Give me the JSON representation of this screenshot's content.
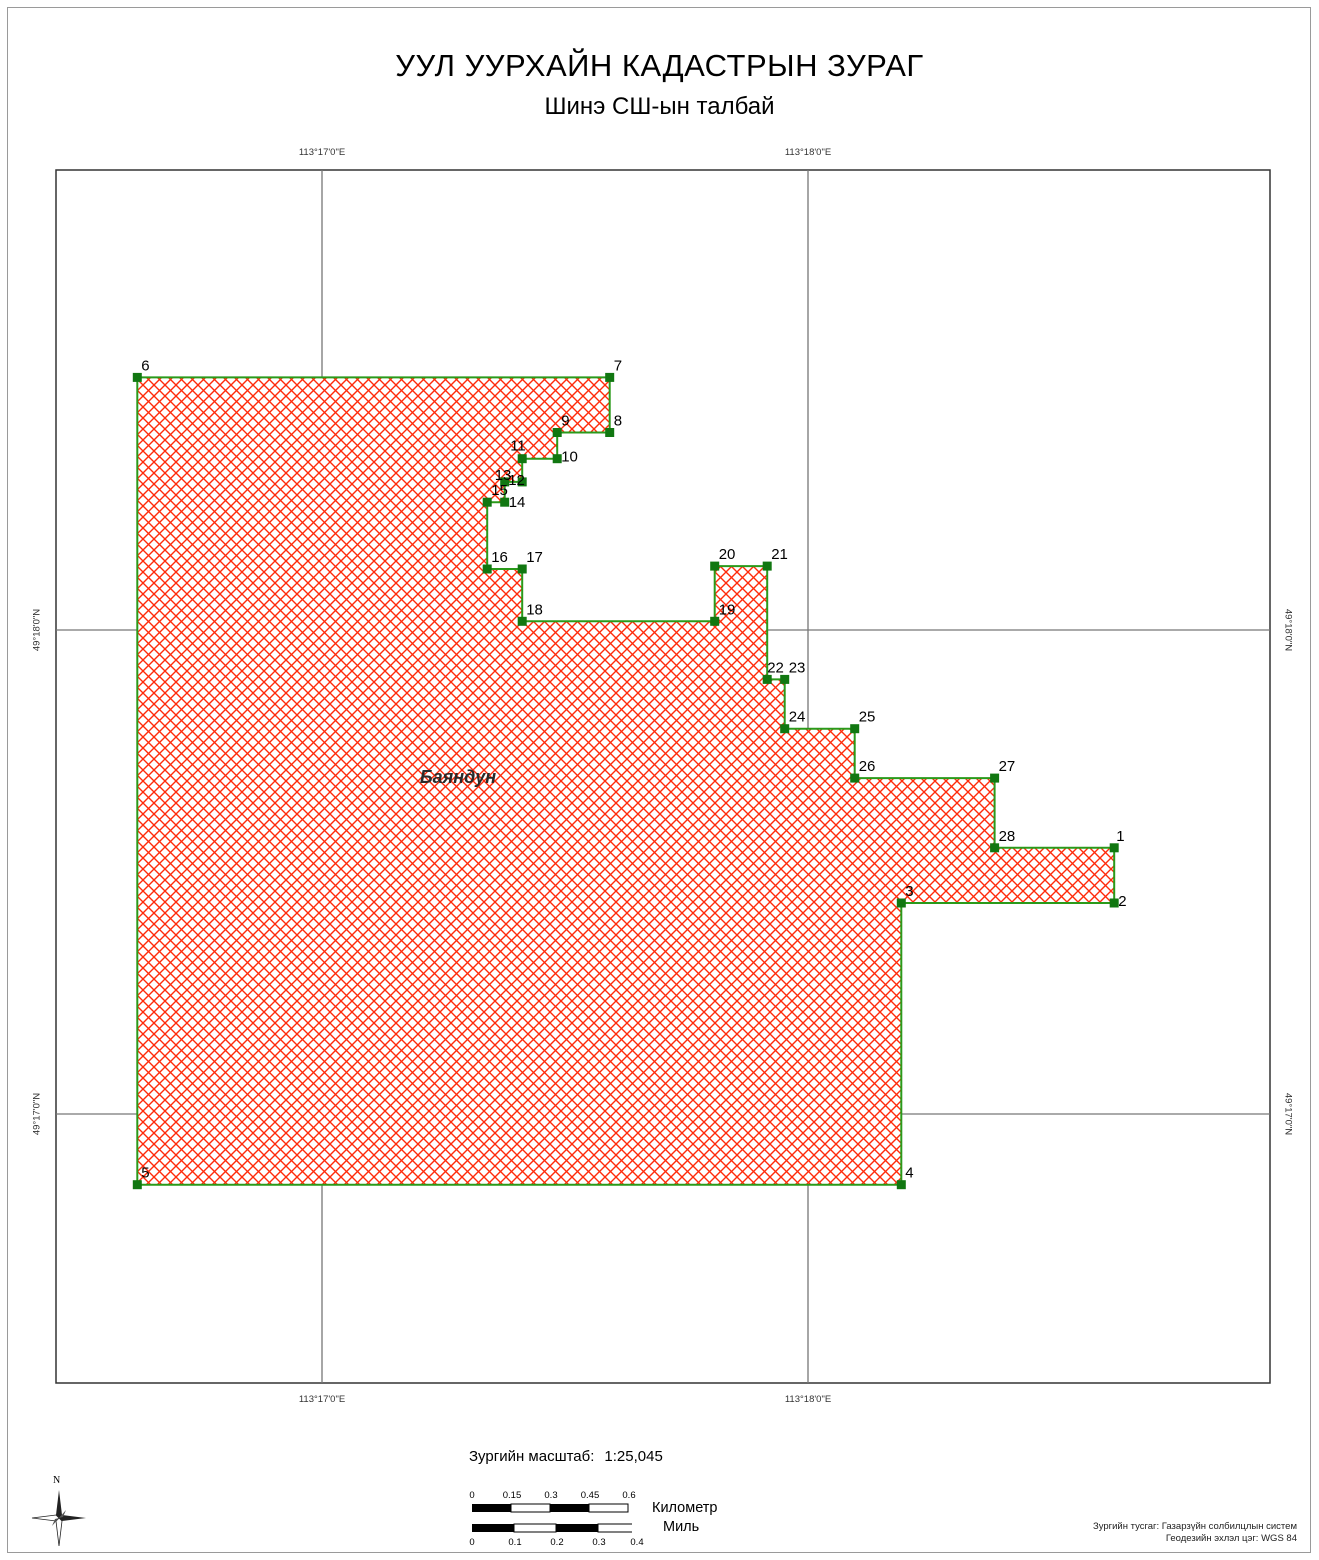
{
  "map": {
    "title": "УУЛ УУРХАЙН КАДАСТРЫН ЗУРАГ",
    "subtitle": "Шинэ СШ-ын талбай",
    "area_label": "Баяндун",
    "colors": {
      "fill_hatch": "#ff2a0a",
      "outline": "#2a9a1a",
      "vertex": "#117711",
      "grid": "#777777"
    }
  },
  "grid": {
    "longitudes": [
      "113°17'0\"E",
      "113°18'0\"E"
    ],
    "latitudes": [
      "49°18'0\"N",
      "49°17'0\"N"
    ]
  },
  "vertices": [
    {
      "id": "1",
      "lon": 113.3105,
      "lat": 49.2925
    },
    {
      "id": "2",
      "lon": 113.3105,
      "lat": 49.2906
    },
    {
      "id": "3",
      "lon": 113.3032,
      "lat": 49.2906
    },
    {
      "id": "4",
      "lon": 113.3032,
      "lat": 49.2809
    },
    {
      "id": "5",
      "lon": 113.277,
      "lat": 49.2809
    },
    {
      "id": "6",
      "lon": 113.277,
      "lat": 49.3087
    },
    {
      "id": "7",
      "lon": 113.2932,
      "lat": 49.3087
    },
    {
      "id": "8",
      "lon": 113.2932,
      "lat": 49.3068
    },
    {
      "id": "9",
      "lon": 113.2914,
      "lat": 49.3068
    },
    {
      "id": "10",
      "lon": 113.2914,
      "lat": 49.3059
    },
    {
      "id": "11",
      "lon": 113.2902,
      "lat": 49.3059
    },
    {
      "id": "12",
      "lon": 113.2902,
      "lat": 49.3051
    },
    {
      "id": "13",
      "lon": 113.2896,
      "lat": 49.3051
    },
    {
      "id": "14",
      "lon": 113.2896,
      "lat": 49.3044
    },
    {
      "id": "15",
      "lon": 113.289,
      "lat": 49.3044
    },
    {
      "id": "16",
      "lon": 113.289,
      "lat": 49.3021
    },
    {
      "id": "17",
      "lon": 113.2902,
      "lat": 49.3021
    },
    {
      "id": "18",
      "lon": 113.2902,
      "lat": 49.3003
    },
    {
      "id": "19",
      "lon": 113.2968,
      "lat": 49.3003
    },
    {
      "id": "20",
      "lon": 113.2968,
      "lat": 49.3022
    },
    {
      "id": "21",
      "lon": 113.2986,
      "lat": 49.3022
    },
    {
      "id": "22",
      "lon": 113.2986,
      "lat": 49.2983
    },
    {
      "id": "23",
      "lon": 113.2992,
      "lat": 49.2983
    },
    {
      "id": "24",
      "lon": 113.2992,
      "lat": 49.2966
    },
    {
      "id": "25",
      "lon": 113.3016,
      "lat": 49.2966
    },
    {
      "id": "26",
      "lon": 113.3016,
      "lat": 49.2949
    },
    {
      "id": "27",
      "lon": 113.3064,
      "lat": 49.2949
    },
    {
      "id": "28",
      "lon": 113.3064,
      "lat": 49.2925
    }
  ],
  "scale": {
    "label": "Зургийн масштаб:",
    "value": "1:25,045",
    "km_ticks": [
      "0",
      "0.15",
      "0.3",
      "0.45",
      "0.6"
    ],
    "km_unit": "Километр",
    "mi_ticks": [
      "0",
      "0.1",
      "0.2",
      "0.3",
      "0.4"
    ],
    "mi_unit": "Миль"
  },
  "north_letter": "N",
  "credits": {
    "line1": "Зургийн тусгаг: Газарзүйн солбилцлын систем",
    "line2": "Геодезийн эхлэл цэг: WGS 84"
  }
}
